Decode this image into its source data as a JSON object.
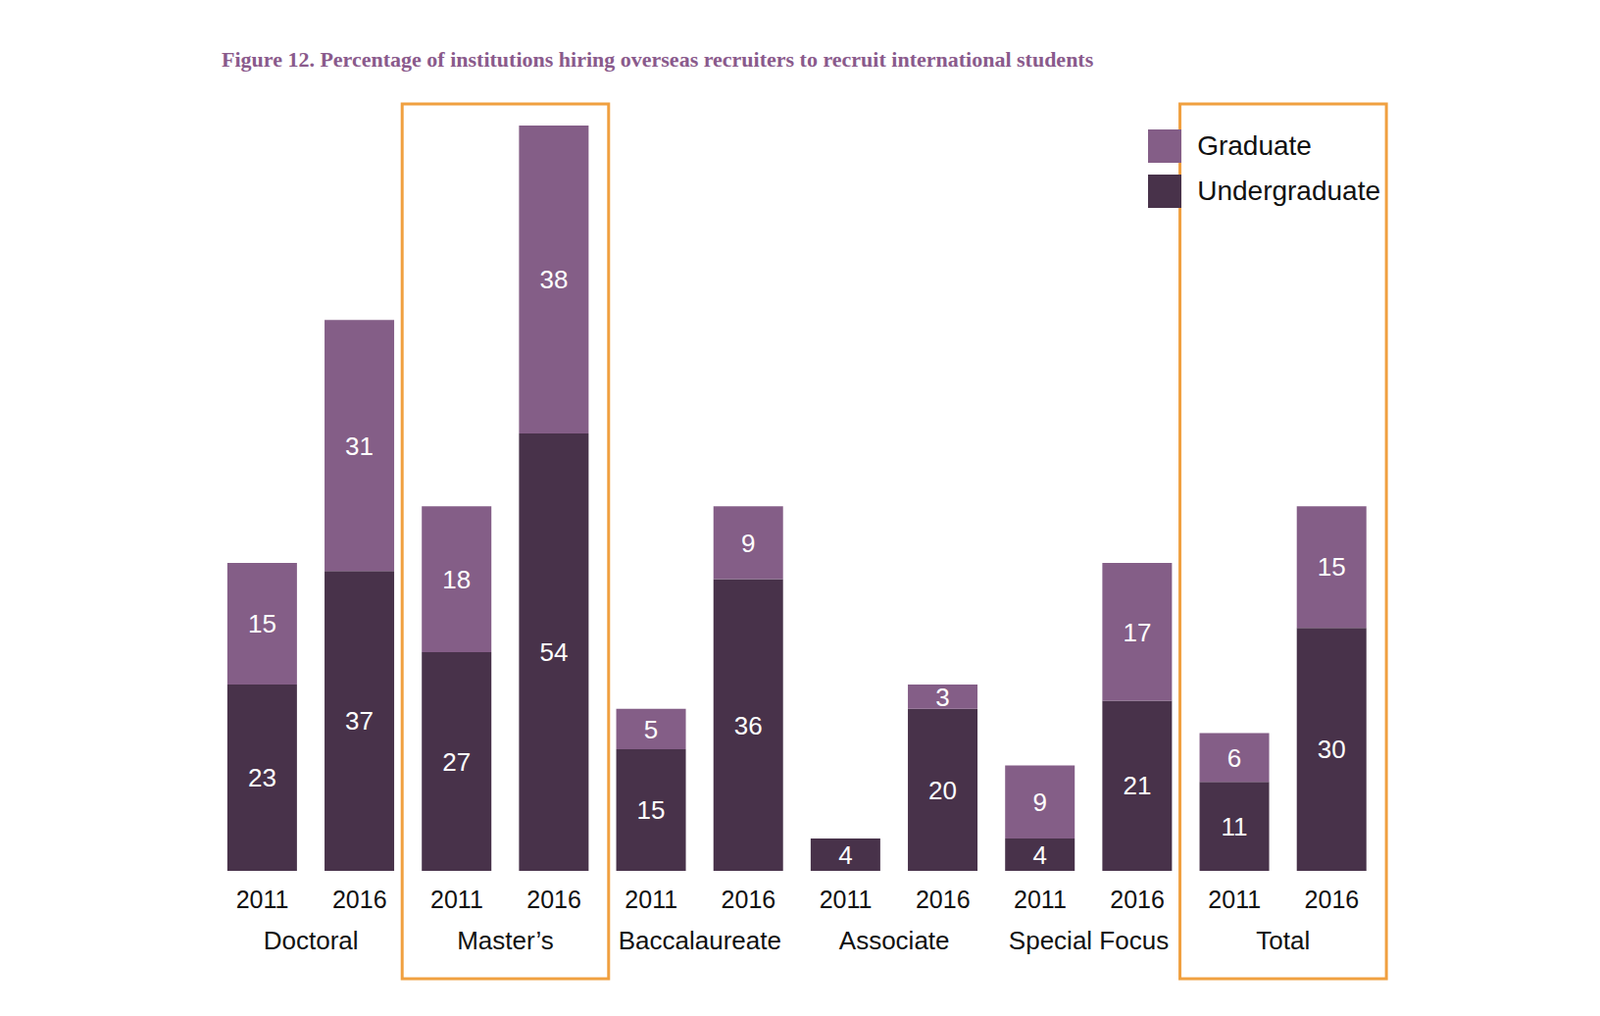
{
  "chart_data": {
    "type": "bar",
    "title": "Figure 12. Percentage of institutions hiring overseas recruiters to recruit international students",
    "categories": [
      "2011",
      "2016",
      "2011",
      "2016",
      "2011",
      "2016",
      "2011",
      "2016",
      "2011",
      "2016",
      "2011",
      "2016"
    ],
    "groups": [
      "Doctoral",
      "Master’s",
      "Baccalaureate",
      "Associate",
      "Special Focus",
      "Total"
    ],
    "series": [
      {
        "name": "Graduate",
        "color": "#845e87",
        "values": [
          15,
          31,
          18,
          38,
          5,
          9,
          null,
          3,
          9,
          17,
          6,
          15
        ]
      },
      {
        "name": "Undergraduate",
        "color": "#48324a",
        "values": [
          23,
          37,
          27,
          54,
          15,
          36,
          4,
          20,
          4,
          21,
          11,
          30
        ]
      }
    ],
    "ylim": [
      0,
      92
    ],
    "stacked": true,
    "data_labels": true,
    "legend": "top-right",
    "grid": false,
    "tick_labels": "x"
  }
}
